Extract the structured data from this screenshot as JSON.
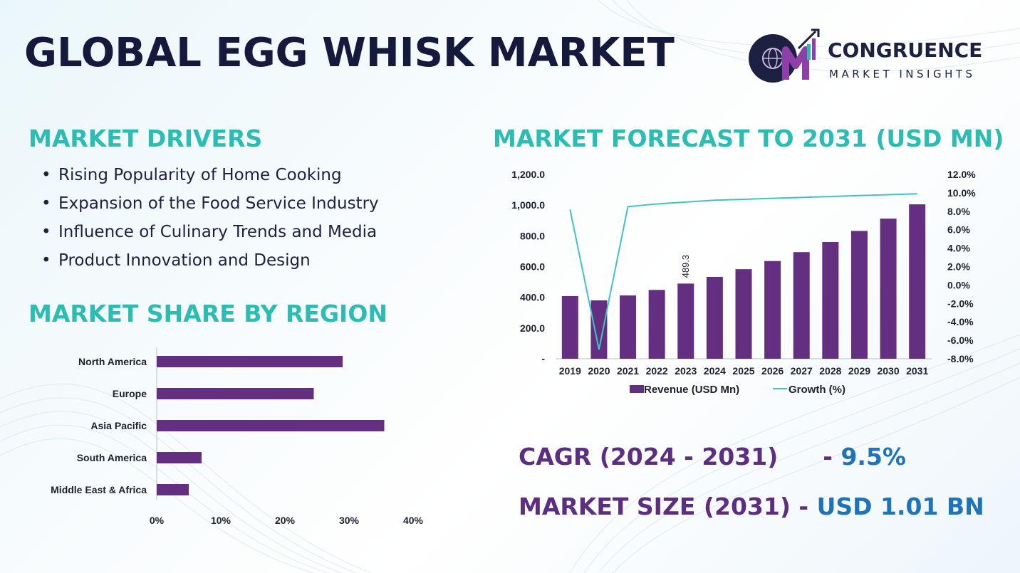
{
  "header": {
    "title": "GLOBAL EGG WHISK MARKET",
    "logo_line1": "CONGRUENCE",
    "logo_line2": "MARKET INSIGHTS"
  },
  "drivers": {
    "heading": "MARKET DRIVERS",
    "items": [
      "Rising Popularity of Home Cooking",
      "Expansion of the Food Service Industry",
      "Influence of Culinary Trends and Media",
      "Product Innovation and Design"
    ]
  },
  "share": {
    "heading": "MARKET SHARE BY REGION"
  },
  "forecast": {
    "heading": "MARKET FORECAST TO 2031 (USD MN)"
  },
  "stats": {
    "cagr_label": "CAGR (2024 - 2031)",
    "cagr_sep": "- ",
    "cagr_value": "9.5%",
    "size_label": "MARKET SIZE (2031)",
    "size_sep": " - ",
    "size_value": "USD 1.01 BN"
  },
  "colors": {
    "bar": "#642f80",
    "line": "#3fc4c0",
    "heading": "#2bbcb3",
    "title": "#151a3d"
  },
  "chart_data": [
    {
      "type": "bar",
      "orientation": "horizontal",
      "categories": [
        "North America",
        "Europe",
        "Asia Pacific",
        "South America",
        "Middle East & Africa"
      ],
      "values": [
        29,
        24.5,
        35.5,
        7,
        5
      ],
      "xlim": [
        0,
        40
      ],
      "xticks": [
        "0%",
        "10%",
        "20%",
        "30%",
        "40%"
      ],
      "grid": false
    },
    {
      "type": "bar",
      "categories": [
        "2019",
        "2020",
        "2021",
        "2022",
        "2023",
        "2024",
        "2025",
        "2026",
        "2027",
        "2028",
        "2029",
        "2030",
        "2031"
      ],
      "series": [
        {
          "name": "Revenue (USD Mn)",
          "type": "bar",
          "axis": "left",
          "values": [
            408,
            380,
            412,
            448,
            489.3,
            533,
            583,
            636,
            694,
            760,
            832,
            912,
            1005
          ]
        },
        {
          "name": "Growth (%)",
          "type": "line",
          "axis": "right",
          "values": [
            8.2,
            -7.0,
            8.5,
            8.8,
            9.0,
            9.2,
            9.3,
            9.4,
            9.5,
            9.6,
            9.7,
            9.8,
            9.9
          ]
        }
      ],
      "ylim_left": [
        0,
        1200
      ],
      "yticks_left": [
        "-",
        "200.0",
        "400.0",
        "600.0",
        "800.0",
        "1,000.0",
        "1,200.0"
      ],
      "ylim_right": [
        -8,
        12
      ],
      "yticks_right": [
        "-8.0%",
        "-6.0%",
        "-4.0%",
        "-2.0%",
        "0.0%",
        "2.0%",
        "4.0%",
        "6.0%",
        "8.0%",
        "10.0%",
        "12.0%"
      ],
      "data_labels": [
        {
          "category": "2023",
          "text": "489.3"
        }
      ],
      "legend": "bottom",
      "grid": false
    }
  ]
}
